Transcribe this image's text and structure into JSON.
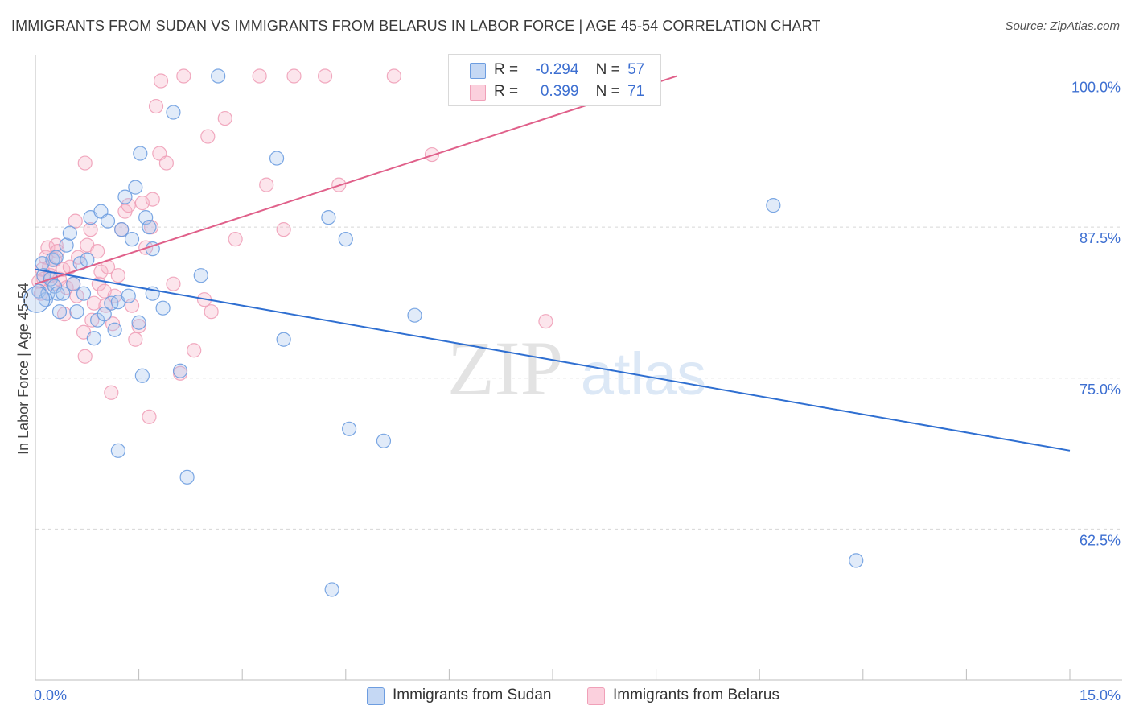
{
  "title": "IMMIGRANTS FROM SUDAN VS IMMIGRANTS FROM BELARUS IN LABOR FORCE | AGE 45-54 CORRELATION CHART",
  "source": "Source: ZipAtlas.com",
  "watermark": {
    "zip": "ZIP",
    "atlas": "atlas"
  },
  "legend": {
    "sudan": {
      "r_label": "R =",
      "r_value": "-0.294",
      "n_label": "N =",
      "n_value": "57"
    },
    "belarus": {
      "r_label": "R =",
      "r_value": "0.399",
      "n_label": "N =",
      "n_value": "71"
    }
  },
  "bottom_legend": {
    "sudan": "Immigrants from Sudan",
    "belarus": "Immigrants from Belarus"
  },
  "chart_data": {
    "type": "scatter",
    "title": "IMMIGRANTS FROM SUDAN VS IMMIGRANTS FROM BELARUS IN LABOR FORCE | AGE 45-54 CORRELATION CHART",
    "xlabel": "",
    "ylabel": "In Labor Force | Age 45-54",
    "xlim": [
      0,
      15
    ],
    "ylim": [
      50,
      101.5
    ],
    "x_tick_labels": [
      "0.0%",
      "15.0%"
    ],
    "y_ticks": [
      62.5,
      75.0,
      87.5,
      100.0
    ],
    "y_tick_labels": [
      "62.5%",
      "75.0%",
      "87.5%",
      "100.0%"
    ],
    "grid": true,
    "legend_position": "top-center",
    "colors": {
      "sudan": "#6d9de0",
      "sudan_line": "#2f6fd1",
      "belarus": "#f0a0b8",
      "belarus_line": "#e0608a",
      "axis_labels": "#3d6fd1"
    },
    "series": [
      {
        "name": "Immigrants from Sudan",
        "R": -0.294,
        "N": 57,
        "trend": {
          "x": [
            0.0,
            15.0
          ],
          "y": [
            84.0,
            69.0
          ]
        },
        "points": [
          [
            0.05,
            82.2
          ],
          [
            0.1,
            84.5
          ],
          [
            0.12,
            83.5
          ],
          [
            0.15,
            81.5
          ],
          [
            0.18,
            82.0
          ],
          [
            0.22,
            83.2
          ],
          [
            0.25,
            84.8
          ],
          [
            0.28,
            82.6
          ],
          [
            0.3,
            85.0
          ],
          [
            0.32,
            82.0
          ],
          [
            0.35,
            80.5
          ],
          [
            0.4,
            82.0
          ],
          [
            0.45,
            86.0
          ],
          [
            0.5,
            87.0
          ],
          [
            0.55,
            82.8
          ],
          [
            0.6,
            80.5
          ],
          [
            0.65,
            84.5
          ],
          [
            0.7,
            82.0
          ],
          [
            0.75,
            84.8
          ],
          [
            0.8,
            88.3
          ],
          [
            0.85,
            78.3
          ],
          [
            0.9,
            79.8
          ],
          [
            0.95,
            88.8
          ],
          [
            1.0,
            80.3
          ],
          [
            1.05,
            88.0
          ],
          [
            1.1,
            81.2
          ],
          [
            1.15,
            79.0
          ],
          [
            1.2,
            81.3
          ],
          [
            1.25,
            87.3
          ],
          [
            1.3,
            90.0
          ],
          [
            1.35,
            81.8
          ],
          [
            1.4,
            86.5
          ],
          [
            1.45,
            90.8
          ],
          [
            1.5,
            79.6
          ],
          [
            1.52,
            93.6
          ],
          [
            1.55,
            75.2
          ],
          [
            1.6,
            88.3
          ],
          [
            1.65,
            87.5
          ],
          [
            1.7,
            85.7
          ],
          [
            1.7,
            82.0
          ],
          [
            1.85,
            80.8
          ],
          [
            2.0,
            97.0
          ],
          [
            2.1,
            75.6
          ],
          [
            2.2,
            66.8
          ],
          [
            2.4,
            83.5
          ],
          [
            2.65,
            100.0
          ],
          [
            3.5,
            93.2
          ],
          [
            3.6,
            78.2
          ],
          [
            4.25,
            88.3
          ],
          [
            4.5,
            86.5
          ],
          [
            4.55,
            70.8
          ],
          [
            5.05,
            69.8
          ],
          [
            5.5,
            80.2
          ],
          [
            1.2,
            69.0
          ],
          [
            10.7,
            89.3
          ],
          [
            11.9,
            59.9
          ],
          [
            4.3,
            57.5
          ]
        ]
      },
      {
        "name": "Immigrants from Belarus",
        "R": 0.399,
        "N": 71,
        "trend": {
          "x": [
            0.0,
            9.3
          ],
          "y": [
            82.8,
            100.0
          ]
        },
        "points": [
          [
            0.05,
            83.0
          ],
          [
            0.08,
            82.0
          ],
          [
            0.1,
            84.0
          ],
          [
            0.12,
            83.2
          ],
          [
            0.15,
            85.0
          ],
          [
            0.18,
            85.8
          ],
          [
            0.2,
            84.2
          ],
          [
            0.22,
            83.5
          ],
          [
            0.25,
            82.8
          ],
          [
            0.28,
            84.8
          ],
          [
            0.3,
            86.0
          ],
          [
            0.32,
            85.5
          ],
          [
            0.35,
            83.2
          ],
          [
            0.4,
            84.0
          ],
          [
            0.42,
            80.3
          ],
          [
            0.45,
            82.5
          ],
          [
            0.5,
            84.2
          ],
          [
            0.55,
            82.8
          ],
          [
            0.6,
            81.8
          ],
          [
            0.62,
            85.0
          ],
          [
            0.7,
            78.8
          ],
          [
            0.72,
            76.8
          ],
          [
            0.75,
            86.0
          ],
          [
            0.8,
            87.3
          ],
          [
            0.82,
            79.8
          ],
          [
            0.85,
            81.2
          ],
          [
            0.9,
            85.5
          ],
          [
            0.92,
            82.8
          ],
          [
            0.95,
            83.8
          ],
          [
            1.0,
            82.2
          ],
          [
            1.02,
            81.0
          ],
          [
            1.05,
            84.2
          ],
          [
            1.1,
            73.8
          ],
          [
            1.12,
            79.5
          ],
          [
            1.15,
            81.8
          ],
          [
            1.2,
            83.5
          ],
          [
            1.25,
            87.3
          ],
          [
            1.3,
            88.8
          ],
          [
            1.35,
            89.3
          ],
          [
            1.4,
            81.0
          ],
          [
            1.45,
            78.2
          ],
          [
            1.5,
            79.3
          ],
          [
            1.55,
            89.5
          ],
          [
            1.6,
            85.8
          ],
          [
            1.65,
            71.8
          ],
          [
            1.7,
            89.8
          ],
          [
            1.75,
            97.5
          ],
          [
            1.8,
            93.6
          ],
          [
            1.82,
            99.6
          ],
          [
            1.9,
            92.8
          ],
          [
            2.0,
            82.8
          ],
          [
            2.1,
            75.4
          ],
          [
            2.15,
            100.0
          ],
          [
            2.3,
            77.3
          ],
          [
            2.45,
            81.5
          ],
          [
            2.5,
            95.0
          ],
          [
            2.55,
            80.5
          ],
          [
            2.75,
            96.5
          ],
          [
            2.9,
            86.5
          ],
          [
            3.25,
            100.0
          ],
          [
            3.35,
            91.0
          ],
          [
            3.6,
            87.3
          ],
          [
            3.75,
            100.0
          ],
          [
            4.2,
            100.0
          ],
          [
            4.4,
            91.0
          ],
          [
            5.2,
            100.0
          ],
          [
            5.75,
            93.5
          ],
          [
            7.4,
            79.7
          ],
          [
            0.72,
            92.8
          ],
          [
            1.68,
            87.5
          ],
          [
            0.58,
            88.0
          ]
        ]
      }
    ]
  }
}
